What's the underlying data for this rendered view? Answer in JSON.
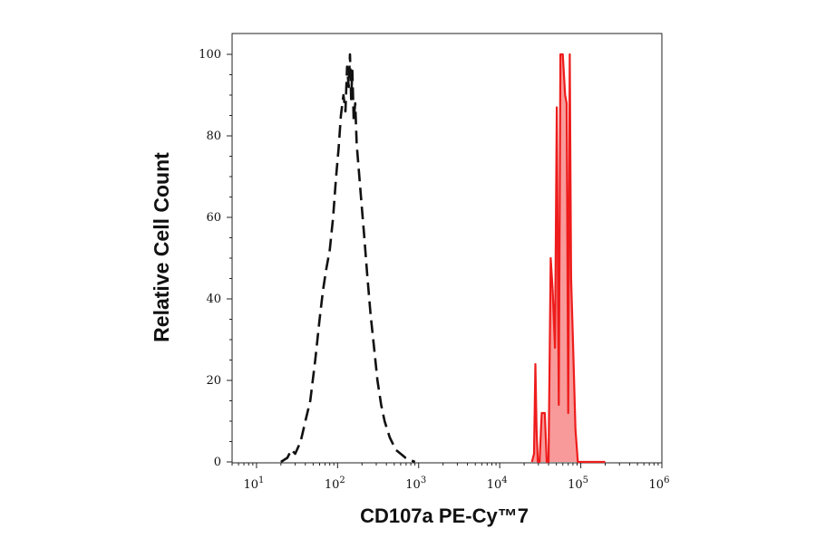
{
  "chart_data": {
    "type": "area",
    "xlabel": "CD107a PE-Cy™7",
    "ylabel": "Relative Cell Count",
    "x_scale": "log",
    "xlim": [
      5,
      1000000
    ],
    "ylim": [
      0,
      100
    ],
    "x_ticks": [
      {
        "value": 10,
        "base": "10",
        "exp": "1"
      },
      {
        "value": 100,
        "base": "10",
        "exp": "2"
      },
      {
        "value": 1000,
        "base": "10",
        "exp": "3"
      },
      {
        "value": 10000,
        "base": "10",
        "exp": "4"
      },
      {
        "value": 100000,
        "base": "10",
        "exp": "5"
      },
      {
        "value": 1000000,
        "base": "10",
        "exp": "6"
      }
    ],
    "y_ticks": [
      {
        "value": 0,
        "label": "0"
      },
      {
        "value": 20,
        "label": "20"
      },
      {
        "value": 40,
        "label": "40"
      },
      {
        "value": 60,
        "label": "60"
      },
      {
        "value": 80,
        "label": "80"
      },
      {
        "value": 100,
        "label": "100"
      }
    ],
    "grid": false,
    "series": [
      {
        "style": "dashed",
        "color": "#111111",
        "fill": "none",
        "points": [
          [
            20,
            0
          ],
          [
            24,
            1
          ],
          [
            27,
            3
          ],
          [
            30,
            2
          ],
          [
            35,
            5
          ],
          [
            40,
            10
          ],
          [
            46,
            15
          ],
          [
            53,
            25
          ],
          [
            60,
            35
          ],
          [
            66,
            42
          ],
          [
            72,
            47
          ],
          [
            80,
            52
          ],
          [
            88,
            60
          ],
          [
            96,
            70
          ],
          [
            103,
            77
          ],
          [
            110,
            85
          ],
          [
            118,
            90
          ],
          [
            125,
            86
          ],
          [
            131,
            97
          ],
          [
            137,
            92
          ],
          [
            142,
            100
          ],
          [
            147,
            89
          ],
          [
            152,
            96
          ],
          [
            158,
            84
          ],
          [
            165,
            88
          ],
          [
            172,
            78
          ],
          [
            182,
            72
          ],
          [
            196,
            64
          ],
          [
            212,
            56
          ],
          [
            232,
            46
          ],
          [
            256,
            36
          ],
          [
            282,
            28
          ],
          [
            310,
            20
          ],
          [
            345,
            14
          ],
          [
            380,
            10
          ],
          [
            440,
            6
          ],
          [
            520,
            3
          ],
          [
            600,
            2
          ],
          [
            690,
            1
          ],
          [
            780,
            0.5
          ],
          [
            900,
            0
          ]
        ]
      },
      {
        "style": "solid",
        "color": "#ee1c1c",
        "fill": "#f99a9a",
        "points": [
          [
            25000,
            0
          ],
          [
            26500,
            2
          ],
          [
            27500,
            24
          ],
          [
            28500,
            8
          ],
          [
            29500,
            0
          ],
          [
            31000,
            0
          ],
          [
            33000,
            12
          ],
          [
            36000,
            12
          ],
          [
            38000,
            0
          ],
          [
            40000,
            0
          ],
          [
            42500,
            50
          ],
          [
            45000,
            42
          ],
          [
            48000,
            28
          ],
          [
            50500,
            87
          ],
          [
            53500,
            14
          ],
          [
            56000,
            100
          ],
          [
            60000,
            100
          ],
          [
            64000,
            90
          ],
          [
            67000,
            88
          ],
          [
            70000,
            12
          ],
          [
            73000,
            100
          ],
          [
            76000,
            45
          ],
          [
            80000,
            30
          ],
          [
            86000,
            8
          ],
          [
            92000,
            0
          ],
          [
            200000,
            0
          ]
        ]
      }
    ]
  }
}
